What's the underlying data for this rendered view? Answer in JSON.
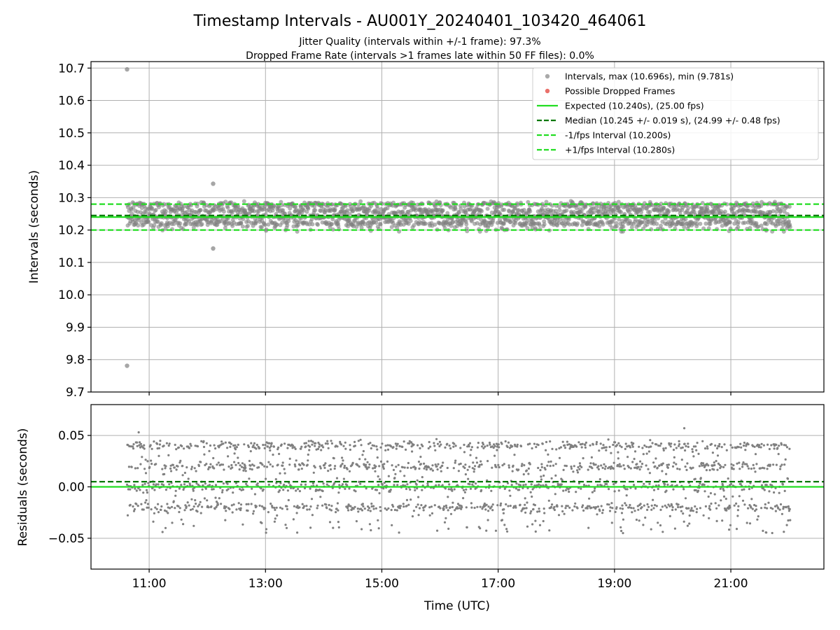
{
  "title": "Timestamp Intervals - AU001Y_20240401_103420_464061",
  "subtitle_lines": [
    "Jitter Quality (intervals within +/-1 frame): 97.3%",
    "Dropped Frame Rate (intervals >1 frames late within 50 FF files): 0.0%"
  ],
  "colors": {
    "points": "#808080",
    "dropped": "#e8605a",
    "expected": "#22dd22",
    "median": "#007700",
    "interval_bounds": "#22dd22"
  },
  "chart_data": [
    {
      "type": "scatter",
      "name": "intervals",
      "ylabel": "Intervals (seconds)",
      "xlabel": "",
      "x_range_hours": [
        10.0,
        22.6
      ],
      "ylim": [
        9.7,
        10.72
      ],
      "x_ticks": [
        {
          "value": 11,
          "label": "11:00"
        },
        {
          "value": 13,
          "label": "13:00"
        },
        {
          "value": 15,
          "label": "15:00"
        },
        {
          "value": 17,
          "label": "17:00"
        },
        {
          "value": 19,
          "label": "19:00"
        },
        {
          "value": 21,
          "label": "21:00"
        }
      ],
      "y_ticks": [
        {
          "value": 9.7,
          "label": "9.7"
        },
        {
          "value": 9.8,
          "label": "9.8"
        },
        {
          "value": 9.9,
          "label": "9.9"
        },
        {
          "value": 10.0,
          "label": "10.0"
        },
        {
          "value": 10.1,
          "label": "10.1"
        },
        {
          "value": 10.2,
          "label": "10.2"
        },
        {
          "value": 10.3,
          "label": "10.3"
        },
        {
          "value": 10.4,
          "label": "10.4"
        },
        {
          "value": 10.5,
          "label": "10.5"
        },
        {
          "value": 10.6,
          "label": "10.6"
        },
        {
          "value": 10.7,
          "label": "10.7"
        }
      ],
      "grid": true,
      "legend_position": "top-right",
      "legend": [
        {
          "kind": "marker",
          "color": "#a0a0a0",
          "label": "Intervals, max (10.696s), min (9.781s)"
        },
        {
          "kind": "marker",
          "color": "#e8605a",
          "label": "Possible Dropped Frames"
        },
        {
          "kind": "solid",
          "color": "#22dd22",
          "label": "Expected (10.240s), (25.00 fps)"
        },
        {
          "kind": "dashed",
          "color": "#007700",
          "label": "Median (10.245 +/- 0.019 s), (24.99 +/- 0.48 fps)"
        },
        {
          "kind": "dashed",
          "color": "#22dd22",
          "label": "-1/fps Interval (10.200s)"
        },
        {
          "kind": "dashed",
          "color": "#22dd22",
          "label": "+1/fps Interval (10.280s)"
        }
      ],
      "reference_lines": [
        {
          "name": "expected",
          "y": 10.24,
          "style": "solid",
          "color": "#22dd22"
        },
        {
          "name": "median",
          "y": 10.245,
          "style": "dashed",
          "color": "#007700"
        },
        {
          "name": "minus_one_fps",
          "y": 10.2,
          "style": "dashed",
          "color": "#22dd22"
        },
        {
          "name": "plus_one_fps",
          "y": 10.28,
          "style": "dashed",
          "color": "#22dd22"
        }
      ],
      "data_summary": {
        "time_start_hours": 10.62,
        "time_end_hours": 22.02,
        "band_center": 10.245,
        "band_low": 10.2,
        "band_high": 10.29,
        "max_interval": 10.696,
        "min_interval": 9.781
      },
      "outliers": [
        {
          "x": 10.62,
          "y": 10.696
        },
        {
          "x": 10.62,
          "y": 9.781
        },
        {
          "x": 12.1,
          "y": 10.343
        },
        {
          "x": 12.1,
          "y": 10.143
        }
      ]
    },
    {
      "type": "scatter",
      "name": "residuals",
      "ylabel": "Residuals (seconds)",
      "xlabel": "Time (UTC)",
      "x_range_hours": [
        10.0,
        22.6
      ],
      "ylim": [
        -0.08,
        0.08
      ],
      "x_ticks": [
        {
          "value": 11,
          "label": "11:00"
        },
        {
          "value": 13,
          "label": "13:00"
        },
        {
          "value": 15,
          "label": "15:00"
        },
        {
          "value": 17,
          "label": "17:00"
        },
        {
          "value": 19,
          "label": "19:00"
        },
        {
          "value": 21,
          "label": "21:00"
        }
      ],
      "y_ticks": [
        {
          "value": 0.05,
          "label": "0.05"
        },
        {
          "value": 0.0,
          "label": "0.00"
        },
        {
          "value": -0.05,
          "label": "−0.05"
        }
      ],
      "grid": true,
      "reference_lines": [
        {
          "name": "zero",
          "y": 0.0,
          "style": "solid",
          "color": "#22dd22"
        },
        {
          "name": "median_offset",
          "y": 0.005,
          "style": "dashed",
          "color": "#007700"
        }
      ],
      "data_summary": {
        "time_start_hours": 10.62,
        "time_end_hours": 22.02,
        "levels": [
          -0.02,
          0.0,
          0.02,
          0.04
        ],
        "max_residual": 0.057,
        "min_residual": -0.045
      }
    }
  ]
}
